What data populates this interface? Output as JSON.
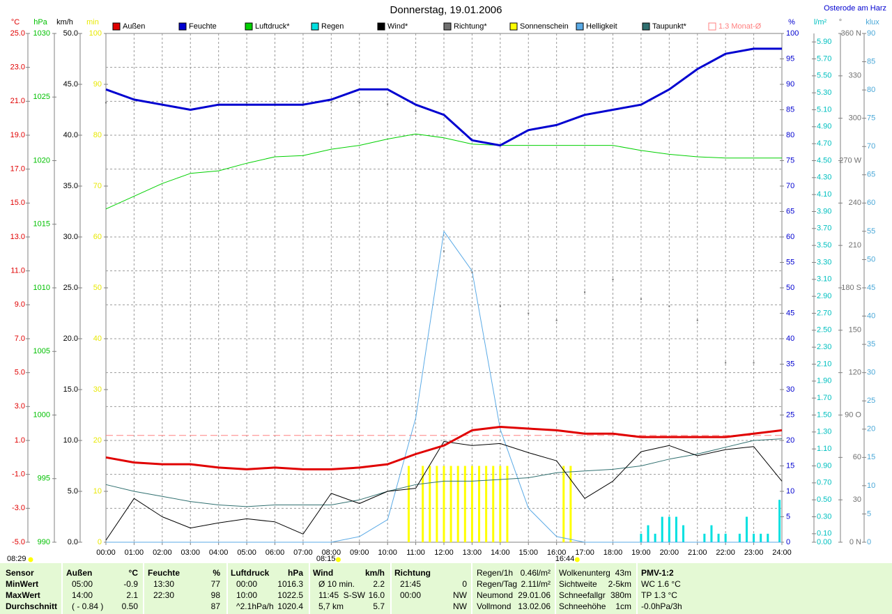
{
  "chart_data": {
    "type": "line",
    "title": "Donnerstag, 19.01.2006",
    "location": "Osterode am Harz",
    "grid": true,
    "x": [
      "00:00",
      "01:00",
      "02:00",
      "03:00",
      "04:00",
      "05:00",
      "06:00",
      "07:00",
      "08:00",
      "09:00",
      "10:00",
      "11:00",
      "12:00",
      "13:00",
      "14:00",
      "15:00",
      "16:00",
      "17:00",
      "18:00",
      "19:00",
      "20:00",
      "21:00",
      "22:00",
      "23:00",
      "24:00"
    ],
    "axes": [
      {
        "unit": "°C",
        "color": "#e00000",
        "lim": [
          -5,
          25
        ],
        "ticks": [
          {
            "value": 25,
            "label": "25.0"
          },
          {
            "value": 23,
            "label": "23.0"
          },
          {
            "value": 21,
            "label": "21.0"
          },
          {
            "value": 19,
            "label": "19.0"
          },
          {
            "value": 17,
            "label": "17.0"
          },
          {
            "value": 15,
            "label": "15.0"
          },
          {
            "value": 13,
            "label": "13.0"
          },
          {
            "value": 11,
            "label": "11.0"
          },
          {
            "value": 9,
            "label": "9.0"
          },
          {
            "value": 7,
            "label": "7.0"
          },
          {
            "value": 5,
            "label": "5.0"
          },
          {
            "value": 3,
            "label": "3.0"
          },
          {
            "value": 1,
            "label": "1.0"
          },
          {
            "value": -1,
            "label": "-1.0"
          },
          {
            "value": -3,
            "label": "-3.0"
          },
          {
            "value": -5,
            "label": "-5.0"
          }
        ]
      },
      {
        "unit": "hPa",
        "color": "#00c000",
        "lim": [
          990,
          1030
        ],
        "ticks": [
          1030,
          1025,
          1020,
          1015,
          1010,
          1005,
          1000,
          995,
          990
        ]
      },
      {
        "unit": "km/h",
        "color": "#000000",
        "lim": [
          0,
          50
        ],
        "ticks": [
          {
            "value": 50,
            "label": "50.0"
          },
          {
            "value": 45,
            "label": "45.0"
          },
          {
            "value": 40,
            "label": "40.0"
          },
          {
            "value": 35,
            "label": "35.0"
          },
          {
            "value": 30,
            "label": "30.0"
          },
          {
            "value": 25,
            "label": "25.0"
          },
          {
            "value": 20,
            "label": "20.0"
          },
          {
            "value": 15,
            "label": "15.0"
          },
          {
            "value": 10,
            "label": "10.0"
          },
          {
            "value": 5,
            "label": "5.0"
          },
          {
            "value": 0,
            "label": "0.0"
          }
        ]
      },
      {
        "unit": "min",
        "color": "#e8e800",
        "lim": [
          0,
          100
        ],
        "ticks": [
          100,
          90,
          80,
          70,
          60,
          50,
          40,
          30,
          20,
          10,
          0
        ]
      },
      {
        "unit": "%",
        "color": "#0000d0",
        "lim": [
          0,
          100
        ],
        "ticks": [
          100,
          95,
          90,
          85,
          80,
          75,
          70,
          65,
          60,
          55,
          50,
          45,
          40,
          35,
          30,
          25,
          20,
          15,
          10,
          5,
          0
        ]
      },
      {
        "unit": "l/m²",
        "color": "#00c0c0",
        "lim": [
          0,
          6
        ],
        "ticks": [
          {
            "value": 5.9,
            "label": "5.90"
          },
          {
            "value": 5.7,
            "label": "5.70"
          },
          {
            "value": 5.5,
            "label": "5.50"
          },
          {
            "value": 5.3,
            "label": "5.30"
          },
          {
            "value": 5.1,
            "label": "5.10"
          },
          {
            "value": 4.9,
            "label": "4.90"
          },
          {
            "value": 4.7,
            "label": "4.70"
          },
          {
            "value": 4.5,
            "label": "4.50"
          },
          {
            "value": 4.3,
            "label": "4.30"
          },
          {
            "value": 4.1,
            "label": "4.10"
          },
          {
            "value": 3.9,
            "label": "3.90"
          },
          {
            "value": 3.7,
            "label": "3.70"
          },
          {
            "value": 3.5,
            "label": "3.50"
          },
          {
            "value": 3.3,
            "label": "3.30"
          },
          {
            "value": 3.1,
            "label": "3.10"
          },
          {
            "value": 2.9,
            "label": "2.90"
          },
          {
            "value": 2.7,
            "label": "2.70"
          },
          {
            "value": 2.5,
            "label": "2.50"
          },
          {
            "value": 2.3,
            "label": "2.30"
          },
          {
            "value": 2.1,
            "label": "2.10"
          },
          {
            "value": 1.9,
            "label": "1.90"
          },
          {
            "value": 1.7,
            "label": "1.70"
          },
          {
            "value": 1.5,
            "label": "1.50"
          },
          {
            "value": 1.3,
            "label": "1.30"
          },
          {
            "value": 1.1,
            "label": "1.10"
          },
          {
            "value": 0.9,
            "label": "0.90"
          },
          {
            "value": 0.7,
            "label": "0.70"
          },
          {
            "value": 0.5,
            "label": "0.50"
          },
          {
            "value": 0.3,
            "label": "0.30"
          },
          {
            "value": 0.1,
            "label": "0.10"
          },
          {
            "value": 0,
            "label": "0.00"
          }
        ]
      },
      {
        "unit": "°",
        "color": "#707070",
        "lim": [
          0,
          360
        ],
        "ticks": [
          {
            "value": 360,
            "label": "360 N"
          },
          330,
          300,
          {
            "value": 270,
            "label": "270 W"
          },
          240,
          210,
          {
            "value": 180,
            "label": "180 S"
          },
          150,
          120,
          {
            "value": 90,
            "label": "90 O"
          },
          60,
          30,
          {
            "value": 0,
            "label": "0   N"
          }
        ]
      },
      {
        "unit": "klux",
        "color": "#4aa8d8",
        "lim": [
          0,
          90
        ],
        "ticks": [
          90,
          85,
          80,
          75,
          70,
          65,
          60,
          55,
          50,
          45,
          40,
          35,
          30,
          25,
          20,
          15,
          10,
          5,
          0
        ]
      }
    ],
    "series": [
      {
        "name": "Außen",
        "color": "#e00000",
        "axis": 0,
        "kind": "line",
        "width": 3,
        "values": [
          0.0,
          -0.3,
          -0.4,
          -0.4,
          -0.6,
          -0.7,
          -0.6,
          -0.7,
          -0.7,
          -0.6,
          -0.4,
          0.2,
          0.7,
          1.6,
          1.8,
          1.7,
          1.6,
          1.4,
          1.4,
          1.2,
          1.2,
          1.2,
          1.2,
          1.4,
          1.6
        ]
      },
      {
        "name": "Feuchte",
        "color": "#0000d0",
        "axis": 4,
        "kind": "line",
        "width": 3,
        "values": [
          89,
          87,
          86,
          85,
          86,
          86,
          86,
          86,
          87,
          89,
          89,
          86,
          84,
          79,
          78,
          81,
          82,
          84,
          85,
          86,
          89,
          93,
          96,
          97,
          97
        ]
      },
      {
        "name": "Luftdruck*",
        "color": "#00d000",
        "axis": 1,
        "kind": "line",
        "width": 1,
        "values": [
          1016.2,
          1017.2,
          1018.2,
          1019.0,
          1019.2,
          1019.8,
          1020.3,
          1020.4,
          1020.9,
          1021.2,
          1021.7,
          1022.1,
          1021.8,
          1021.3,
          1021.2,
          1021.2,
          1021.2,
          1021.2,
          1021.2,
          1020.8,
          1020.5,
          1020.3,
          1020.2,
          1020.2,
          1020.2
        ]
      },
      {
        "name": "Regen",
        "color": "#00e0e0",
        "axis": 5,
        "kind": "bars",
        "x": [
          "19:00",
          "19:15",
          "19:30",
          "19:45",
          "20:00",
          "20:15",
          "20:30",
          "21:15",
          "21:30",
          "21:45",
          "22:00",
          "22:30",
          "22:45",
          "23:00",
          "23:15",
          "23:30",
          "23:55"
        ],
        "values": [
          0.1,
          0.2,
          0.1,
          0.3,
          0.3,
          0.3,
          0.2,
          0.1,
          0.2,
          0.1,
          0.1,
          0.1,
          0.3,
          0.1,
          0.1,
          0.1,
          0.5
        ]
      },
      {
        "name": "Wind*",
        "color": "#000000",
        "axis": 2,
        "kind": "line",
        "width": 1,
        "values": [
          0.2,
          4.3,
          2.5,
          1.4,
          1.9,
          2.3,
          2.0,
          0.8,
          4.8,
          3.8,
          5.0,
          5.3,
          9.9,
          9.5,
          9.7,
          8.8,
          8.0,
          4.3,
          6.0,
          8.9,
          9.5,
          8.5,
          9.1,
          9.4,
          6.0
        ]
      },
      {
        "name": "Richtung*",
        "color": "#707070",
        "axis": 6,
        "kind": "dots",
        "values": [
          311,
          311,
          311,
          311,
          311,
          311,
          311,
          311,
          311,
          311,
          310,
          305,
          206,
          191,
          167,
          162,
          157,
          177,
          186,
          172,
          167,
          157,
          127,
          127,
          null
        ]
      },
      {
        "name": "Sonnenschein",
        "color": "#ffff00",
        "axis": 3,
        "kind": "bars",
        "x": [
          "10:45",
          "11:15",
          "11:30",
          "11:45",
          "12:00",
          "12:15",
          "12:30",
          "12:45",
          "13:00",
          "13:15",
          "13:30",
          "13:45",
          "14:00",
          "14:15",
          "16:15",
          "16:30"
        ],
        "values": [
          15,
          15,
          15,
          15,
          15,
          15,
          15,
          15,
          15,
          15,
          15,
          15,
          15,
          15,
          15,
          15
        ]
      },
      {
        "name": "Helligkeit",
        "color": "#5aaae6",
        "axis": 7,
        "kind": "line",
        "width": 1,
        "values": [
          0,
          0,
          0,
          0,
          0,
          0,
          0,
          0,
          0,
          1,
          4,
          22,
          55,
          48,
          20,
          6,
          1,
          0,
          0,
          0,
          0,
          0,
          0,
          0,
          0
        ]
      },
      {
        "name": "Taupunkt*",
        "color": "#2f6f6f",
        "axis": 0,
        "kind": "line",
        "width": 1,
        "values": [
          -1.6,
          -2.0,
          -2.3,
          -2.6,
          -2.8,
          -2.9,
          -2.8,
          -2.8,
          -2.8,
          -2.5,
          -2.0,
          -1.6,
          -1.4,
          -1.4,
          -1.3,
          -1.2,
          -0.9,
          -0.8,
          -0.7,
          -0.5,
          -0.1,
          0.2,
          0.6,
          1.0,
          1.1
        ]
      },
      {
        "name": "1.3 Monat-Ø",
        "color": "#ff8080",
        "axis": 0,
        "kind": "mean",
        "value": 1.3
      }
    ],
    "sun": {
      "rise": "08:15",
      "set": "16:44",
      "length": "08:29"
    }
  },
  "table": {
    "row_labels": [
      "Sensor",
      "MinWert",
      "MaxWert",
      "Durchschnitt"
    ],
    "groups": [
      {
        "header": "Außen",
        "unit": "°C",
        "rows": [
          [
            "05:00",
            "-0.9"
          ],
          [
            "14:00",
            "2.1"
          ],
          [
            "( - 0.84 )",
            "0.50"
          ]
        ]
      },
      {
        "header": "Feuchte",
        "unit": "%",
        "rows": [
          [
            "13:30",
            "77"
          ],
          [
            "22:30",
            "98"
          ],
          [
            null,
            "87"
          ]
        ]
      },
      {
        "header": "Luftdruck",
        "unit": "hPa",
        "rows": [
          [
            "00:00",
            "1016.3"
          ],
          [
            "10:00",
            "1022.5"
          ],
          [
            "^2.1hPa/h",
            "1020.4"
          ]
        ]
      },
      {
        "header": "Wind",
        "unit": "km/h",
        "rows": [
          [
            "Ø 10 min.",
            "2.2"
          ],
          [
            "11:45",
            "16.0",
            "S-SW"
          ],
          [
            "5,7 km",
            "5.7"
          ]
        ]
      },
      {
        "header": "Richtung",
        "unit": null,
        "rows": [
          [
            "21:45",
            "0"
          ],
          [
            "00:00",
            "NW"
          ],
          [
            null,
            "NW"
          ]
        ]
      }
    ],
    "info": [
      [
        [
          "Regen/1h",
          "0.46l/m²"
        ],
        [
          "Regen/Tag",
          "2.11l/m²"
        ],
        [
          "Neumond",
          "29.01.06"
        ],
        [
          "Vollmond",
          "13.02.06"
        ]
      ],
      [
        [
          "Wolkenunterg",
          "43m"
        ],
        [
          "Sichtweite",
          "2-5km"
        ],
        [
          "Schneefallgr",
          "380m"
        ],
        [
          "Schneehöhe",
          "1cm"
        ]
      ]
    ],
    "pmv": [
      "PMV-1:2",
      "WC 1.6 °C",
      "TP 1.3 °C",
      "-0.0hPa/3h"
    ]
  }
}
